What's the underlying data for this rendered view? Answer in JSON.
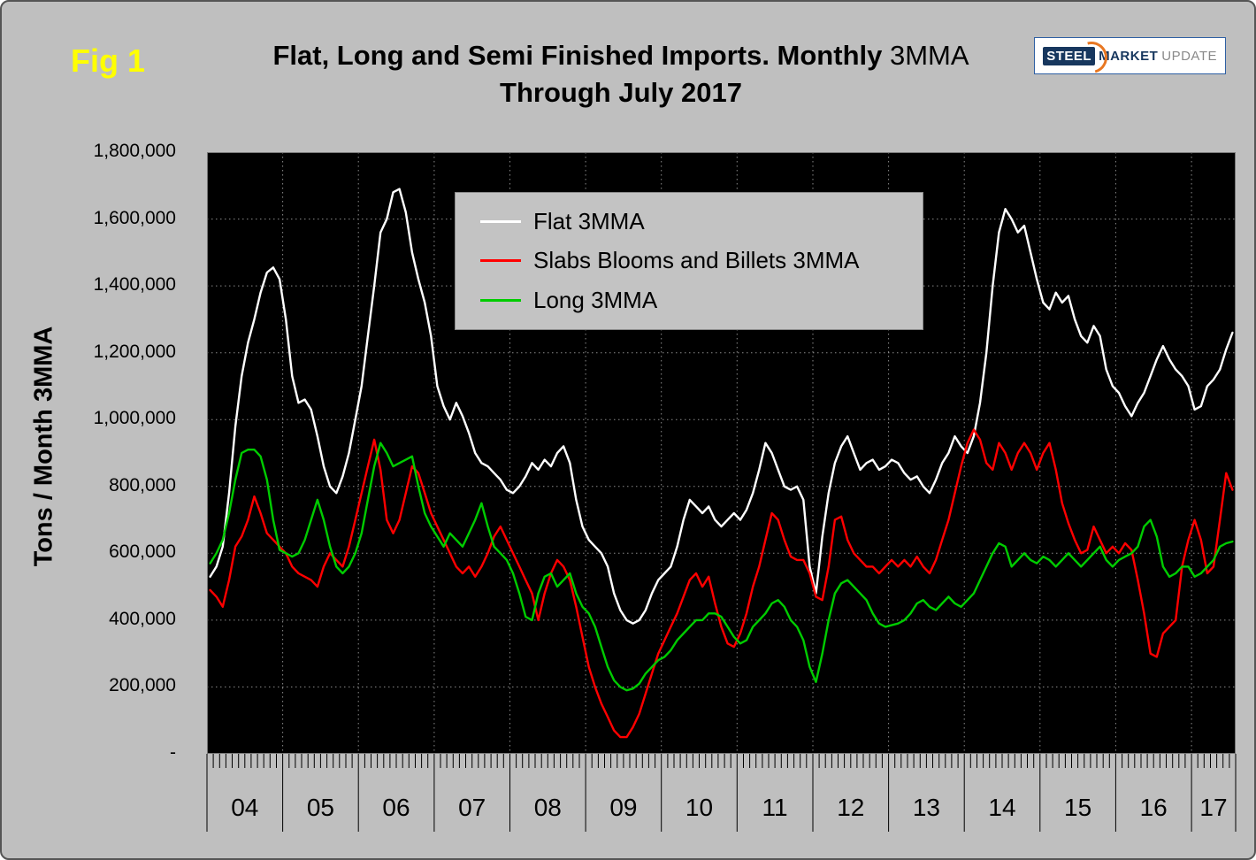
{
  "fig_label": "Fig 1",
  "title": {
    "line1_bold": "Flat, Long and Semi Finished Imports. Monthly",
    "line1_light": " 3MMA",
    "line2": "Through July 2017"
  },
  "logo": {
    "steel": "STEEL",
    "market": "MARKET",
    "update": "UPDATE"
  },
  "y_axis_title": "Tons / Month 3MMA",
  "colors": {
    "background": "#bfbfbf",
    "plot_background": "#000000",
    "gridline": "#8a8a8a",
    "fig_label": "#ffff00",
    "flat_line": "#ffffff",
    "slabs_line": "#ff0000",
    "long_line": "#00cc00"
  },
  "chart_data": {
    "type": "line",
    "title": "Flat, Long and Semi Finished Imports. Monthly 3MMA Through July 2017",
    "xlabel": "",
    "ylabel": "Tons / Month 3MMA",
    "ylim": [
      0,
      1800000
    ],
    "grid": true,
    "legend_position": "upper-center-inside",
    "x_start_month": "2004-01",
    "x_end_month": "2017-07",
    "x_year_labels": [
      "04",
      "05",
      "06",
      "07",
      "08",
      "09",
      "10",
      "11",
      "12",
      "13",
      "14",
      "15",
      "16",
      "17"
    ],
    "y_ticks": [
      0,
      200000,
      400000,
      600000,
      800000,
      1000000,
      1200000,
      1400000,
      1600000,
      1800000
    ],
    "y_tick_labels_top_down": [
      "1,800,000",
      "1,600,000",
      "1,400,000",
      "1,200,000",
      "1,000,000",
      "800,000",
      "600,000",
      "400,000",
      "200,000",
      "-"
    ],
    "legend": [
      {
        "label": "Flat 3MMA",
        "color": "#ffffff"
      },
      {
        "label": "Slabs Blooms and Billets 3MMA",
        "color": "#ff0000"
      },
      {
        "label": "Long 3MMA",
        "color": "#00cc00"
      }
    ],
    "series": [
      {
        "name": "Flat 3MMA",
        "color": "#ffffff",
        "values": [
          530000,
          560000,
          620000,
          780000,
          980000,
          1130000,
          1230000,
          1300000,
          1380000,
          1440000,
          1455000,
          1420000,
          1300000,
          1130000,
          1050000,
          1060000,
          1030000,
          950000,
          860000,
          800000,
          780000,
          830000,
          900000,
          1000000,
          1100000,
          1250000,
          1400000,
          1560000,
          1600000,
          1680000,
          1690000,
          1620000,
          1500000,
          1420000,
          1350000,
          1250000,
          1100000,
          1040000,
          1000000,
          1050000,
          1010000,
          960000,
          900000,
          870000,
          860000,
          840000,
          820000,
          790000,
          780000,
          800000,
          830000,
          870000,
          850000,
          880000,
          860000,
          900000,
          920000,
          870000,
          760000,
          680000,
          640000,
          620000,
          600000,
          560000,
          480000,
          430000,
          400000,
          390000,
          400000,
          430000,
          480000,
          520000,
          540000,
          560000,
          620000,
          700000,
          760000,
          740000,
          720000,
          740000,
          700000,
          680000,
          700000,
          720000,
          700000,
          730000,
          780000,
          850000,
          930000,
          900000,
          850000,
          800000,
          790000,
          800000,
          760000,
          560000,
          480000,
          650000,
          780000,
          870000,
          920000,
          950000,
          900000,
          850000,
          870000,
          880000,
          850000,
          860000,
          880000,
          870000,
          840000,
          820000,
          830000,
          800000,
          780000,
          820000,
          870000,
          900000,
          950000,
          920000,
          900000,
          950000,
          1050000,
          1200000,
          1400000,
          1560000,
          1630000,
          1600000,
          1560000,
          1580000,
          1500000,
          1420000,
          1350000,
          1330000,
          1380000,
          1350000,
          1370000,
          1300000,
          1250000,
          1230000,
          1280000,
          1250000,
          1150000,
          1100000,
          1080000,
          1040000,
          1010000,
          1050000,
          1080000,
          1130000,
          1180000,
          1220000,
          1180000,
          1150000,
          1130000,
          1100000,
          1030000,
          1040000,
          1100000,
          1120000,
          1150000,
          1210000,
          1260000
        ]
      },
      {
        "name": "Slabs Blooms and Billets 3MMA",
        "color": "#ff0000",
        "values": [
          490000,
          470000,
          440000,
          520000,
          620000,
          650000,
          700000,
          770000,
          720000,
          660000,
          640000,
          620000,
          600000,
          560000,
          540000,
          530000,
          520000,
          500000,
          560000,
          600000,
          580000,
          560000,
          620000,
          700000,
          780000,
          860000,
          940000,
          850000,
          700000,
          660000,
          700000,
          780000,
          860000,
          840000,
          780000,
          720000,
          680000,
          640000,
          600000,
          560000,
          540000,
          560000,
          530000,
          560000,
          600000,
          650000,
          680000,
          640000,
          600000,
          560000,
          520000,
          480000,
          400000,
          480000,
          540000,
          580000,
          560000,
          520000,
          440000,
          350000,
          260000,
          200000,
          150000,
          110000,
          70000,
          50000,
          50000,
          80000,
          120000,
          180000,
          240000,
          300000,
          340000,
          380000,
          420000,
          470000,
          520000,
          540000,
          500000,
          530000,
          450000,
          380000,
          330000,
          320000,
          360000,
          420000,
          500000,
          560000,
          640000,
          720000,
          700000,
          640000,
          590000,
          580000,
          580000,
          540000,
          470000,
          460000,
          560000,
          700000,
          710000,
          640000,
          600000,
          580000,
          560000,
          560000,
          540000,
          560000,
          580000,
          560000,
          580000,
          560000,
          590000,
          560000,
          540000,
          580000,
          640000,
          700000,
          780000,
          860000,
          930000,
          970000,
          940000,
          870000,
          850000,
          930000,
          900000,
          850000,
          900000,
          930000,
          900000,
          850000,
          900000,
          930000,
          850000,
          750000,
          690000,
          640000,
          600000,
          610000,
          680000,
          640000,
          600000,
          620000,
          600000,
          630000,
          610000,
          520000,
          420000,
          300000,
          290000,
          360000,
          380000,
          400000,
          560000,
          640000,
          700000,
          640000,
          540000,
          560000,
          700000,
          840000,
          790000
        ]
      },
      {
        "name": "Long 3MMA",
        "color": "#00cc00",
        "values": [
          570000,
          600000,
          640000,
          720000,
          820000,
          900000,
          910000,
          910000,
          890000,
          820000,
          700000,
          610000,
          600000,
          590000,
          600000,
          640000,
          700000,
          760000,
          700000,
          620000,
          560000,
          540000,
          560000,
          600000,
          660000,
          760000,
          860000,
          930000,
          900000,
          860000,
          870000,
          880000,
          890000,
          800000,
          720000,
          680000,
          650000,
          620000,
          660000,
          640000,
          620000,
          660000,
          700000,
          750000,
          680000,
          620000,
          600000,
          580000,
          540000,
          480000,
          410000,
          400000,
          480000,
          530000,
          540000,
          500000,
          520000,
          540000,
          480000,
          440000,
          420000,
          380000,
          320000,
          260000,
          220000,
          200000,
          190000,
          195000,
          210000,
          240000,
          260000,
          280000,
          290000,
          310000,
          340000,
          360000,
          380000,
          400000,
          400000,
          420000,
          420000,
          410000,
          380000,
          350000,
          330000,
          340000,
          380000,
          400000,
          420000,
          450000,
          460000,
          440000,
          400000,
          380000,
          340000,
          260000,
          215000,
          300000,
          400000,
          480000,
          510000,
          520000,
          500000,
          480000,
          460000,
          420000,
          390000,
          380000,
          385000,
          390000,
          400000,
          420000,
          450000,
          460000,
          440000,
          430000,
          450000,
          470000,
          450000,
          440000,
          460000,
          480000,
          520000,
          560000,
          600000,
          630000,
          620000,
          560000,
          580000,
          600000,
          580000,
          570000,
          590000,
          580000,
          560000,
          580000,
          600000,
          580000,
          560000,
          580000,
          600000,
          620000,
          580000,
          560000,
          580000,
          590000,
          600000,
          620000,
          680000,
          700000,
          650000,
          560000,
          530000,
          540000,
          560000,
          560000,
          530000,
          540000,
          560000,
          580000,
          620000,
          630000,
          635000
        ]
      }
    ]
  }
}
